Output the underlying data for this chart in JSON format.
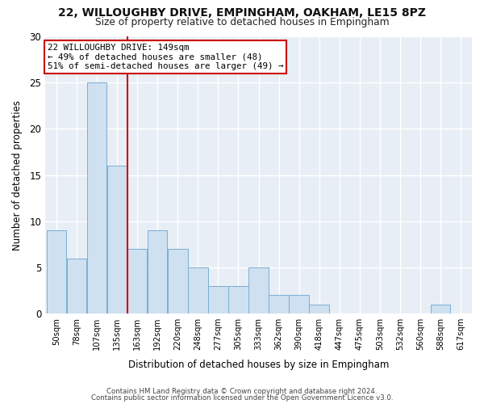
{
  "title": "22, WILLOUGHBY DRIVE, EMPINGHAM, OAKHAM, LE15 8PZ",
  "subtitle": "Size of property relative to detached houses in Empingham",
  "xlabel": "Distribution of detached houses by size in Empingham",
  "ylabel": "Number of detached properties",
  "bar_labels": [
    "50sqm",
    "78sqm",
    "107sqm",
    "135sqm",
    "163sqm",
    "192sqm",
    "220sqm",
    "248sqm",
    "277sqm",
    "305sqm",
    "333sqm",
    "362sqm",
    "390sqm",
    "418sqm",
    "447sqm",
    "475sqm",
    "503sqm",
    "532sqm",
    "560sqm",
    "588sqm",
    "617sqm"
  ],
  "bar_values": [
    9,
    6,
    25,
    16,
    7,
    9,
    7,
    5,
    3,
    3,
    5,
    2,
    2,
    1,
    0,
    0,
    0,
    0,
    0,
    1,
    0
  ],
  "bar_color": "#cfe0f0",
  "bar_edge_color": "#7aafd4",
  "property_value_bin": 3,
  "annotation_line1": "22 WILLOUGHBY DRIVE: 149sqm",
  "annotation_line2": "← 49% of detached houses are smaller (48)",
  "annotation_line3": "51% of semi-detached houses are larger (49) →",
  "red_line_color": "#cc0000",
  "annotation_box_facecolor": "#ffffff",
  "annotation_box_edgecolor": "#cc0000",
  "ylim": [
    0,
    30
  ],
  "yticks": [
    0,
    5,
    10,
    15,
    20,
    25,
    30
  ],
  "footer_line1": "Contains HM Land Registry data © Crown copyright and database right 2024.",
  "footer_line2": "Contains public sector information licensed under the Open Government Licence v3.0.",
  "bg_color": "#ffffff",
  "plot_bg_color": "#e8eef5",
  "grid_color": "#ffffff",
  "bin_edges": [
    50,
    78,
    107,
    135,
    163,
    192,
    220,
    248,
    277,
    305,
    333,
    362,
    390,
    418,
    447,
    475,
    503,
    532,
    560,
    588,
    617,
    646
  ],
  "red_line_x": 135
}
